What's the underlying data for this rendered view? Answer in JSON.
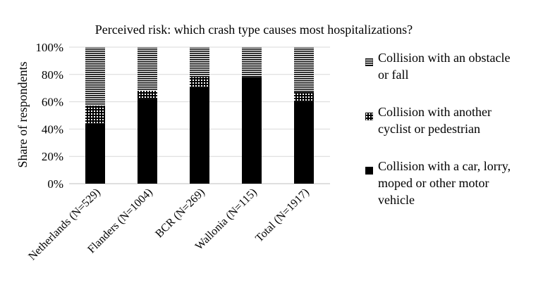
{
  "chart_data": {
    "type": "bar",
    "stacked": true,
    "percent": true,
    "title": "Perceived risk: which crash type causes most hospitalizations?",
    "ylabel": "Share of respondents",
    "xlabel": "",
    "ylim": [
      0,
      100
    ],
    "yticks": [
      "0%",
      "20%",
      "40%",
      "60%",
      "80%",
      "100%"
    ],
    "categories": [
      "Netherlands (N=529)",
      "Flanders (N=1004)",
      "BCR (N=269)",
      "Wallonia (N=115)",
      "Total (N=1917)"
    ],
    "series": [
      {
        "name": "Collision with a car, lorry, moped or other motor vehicle",
        "pattern": "solid",
        "values": [
          44,
          62,
          71,
          78,
          60
        ]
      },
      {
        "name": "Collision with another cyclist or pedestrian",
        "pattern": "grid",
        "values": [
          13,
          6,
          7,
          0,
          7
        ]
      },
      {
        "name": "Collision with an obstacle or fall",
        "pattern": "horizontal-lines",
        "values": [
          43,
          32,
          22,
          22,
          33
        ]
      }
    ],
    "legend": {
      "placement": "right",
      "items": [
        {
          "lines": [
            "Collision with an obstacle",
            "or fall"
          ],
          "pattern": "horizontal-lines"
        },
        {
          "lines": [
            "Collision with another",
            "cyclist or pedestrian"
          ],
          "pattern": "grid"
        },
        {
          "lines": [
            "Collision with a car, lorry,",
            "moped or other motor",
            "vehicle"
          ],
          "pattern": "solid"
        }
      ]
    },
    "grid": true
  }
}
